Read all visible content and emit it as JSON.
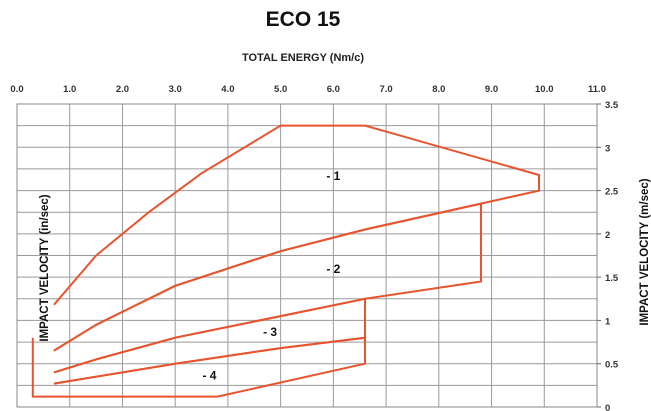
{
  "chart_data": {
    "type": "area",
    "title": "ECO 15",
    "xlabel": "TOTAL ENERGY (Nm/c)",
    "ylabel_left": "IMPACT VELOCITY  (in/sec)",
    "ylabel_right": "IMPACT VELOCITY  (m/sec)",
    "xlim": [
      0,
      11
    ],
    "ylim": [
      0,
      3.5
    ],
    "x_ticks": [
      "0.0",
      "1.0",
      "2.0",
      "3.0",
      "4.0",
      "5.0",
      "6.0",
      "7.0",
      "8.0",
      "9.0",
      "10.0",
      "11.0"
    ],
    "y_ticks": [
      "0",
      "0.5",
      "1",
      "1.5",
      "2",
      "2.5",
      "3",
      "3.5"
    ],
    "grid": true,
    "series": [
      {
        "name": "- 1",
        "label_pos": [
          6.0,
          2.62
        ],
        "points": [
          [
            0.7,
            1.18
          ],
          [
            1.5,
            1.75
          ],
          [
            2.5,
            2.25
          ],
          [
            3.5,
            2.7
          ],
          [
            5.0,
            3.25
          ],
          [
            6.6,
            3.25
          ],
          [
            9.9,
            2.68
          ],
          [
            9.9,
            2.5
          ],
          [
            8.8,
            2.35
          ],
          [
            6.6,
            2.05
          ],
          [
            5.0,
            1.8
          ],
          [
            3.0,
            1.4
          ],
          [
            1.5,
            0.95
          ],
          [
            0.7,
            0.65
          ]
        ]
      },
      {
        "name": "- 2",
        "label_pos": [
          6.0,
          1.55
        ],
        "points": [
          [
            0.7,
            0.65
          ],
          [
            1.5,
            0.95
          ],
          [
            3.0,
            1.4
          ],
          [
            5.0,
            1.8
          ],
          [
            6.6,
            2.05
          ],
          [
            8.8,
            2.35
          ],
          [
            8.8,
            1.45
          ],
          [
            6.6,
            1.25
          ],
          [
            5.0,
            1.05
          ],
          [
            3.0,
            0.8
          ],
          [
            1.5,
            0.55
          ],
          [
            0.7,
            0.4
          ]
        ]
      },
      {
        "name": "- 3",
        "label_pos": [
          4.8,
          0.82
        ],
        "points": [
          [
            0.7,
            0.4
          ],
          [
            1.5,
            0.55
          ],
          [
            3.0,
            0.8
          ],
          [
            5.0,
            1.05
          ],
          [
            6.6,
            1.25
          ],
          [
            6.6,
            0.8
          ],
          [
            5.0,
            0.68
          ],
          [
            3.0,
            0.5
          ],
          [
            1.5,
            0.35
          ],
          [
            0.7,
            0.27
          ]
        ]
      },
      {
        "name": "- 4",
        "label_pos": [
          3.65,
          0.32
        ],
        "points": [
          [
            0.7,
            0.27
          ],
          [
            1.5,
            0.35
          ],
          [
            3.0,
            0.5
          ],
          [
            5.0,
            0.68
          ],
          [
            6.6,
            0.8
          ],
          [
            6.6,
            0.5
          ],
          [
            3.8,
            0.12
          ],
          [
            0.3,
            0.12
          ],
          [
            0.3,
            0.8
          ]
        ]
      }
    ]
  }
}
